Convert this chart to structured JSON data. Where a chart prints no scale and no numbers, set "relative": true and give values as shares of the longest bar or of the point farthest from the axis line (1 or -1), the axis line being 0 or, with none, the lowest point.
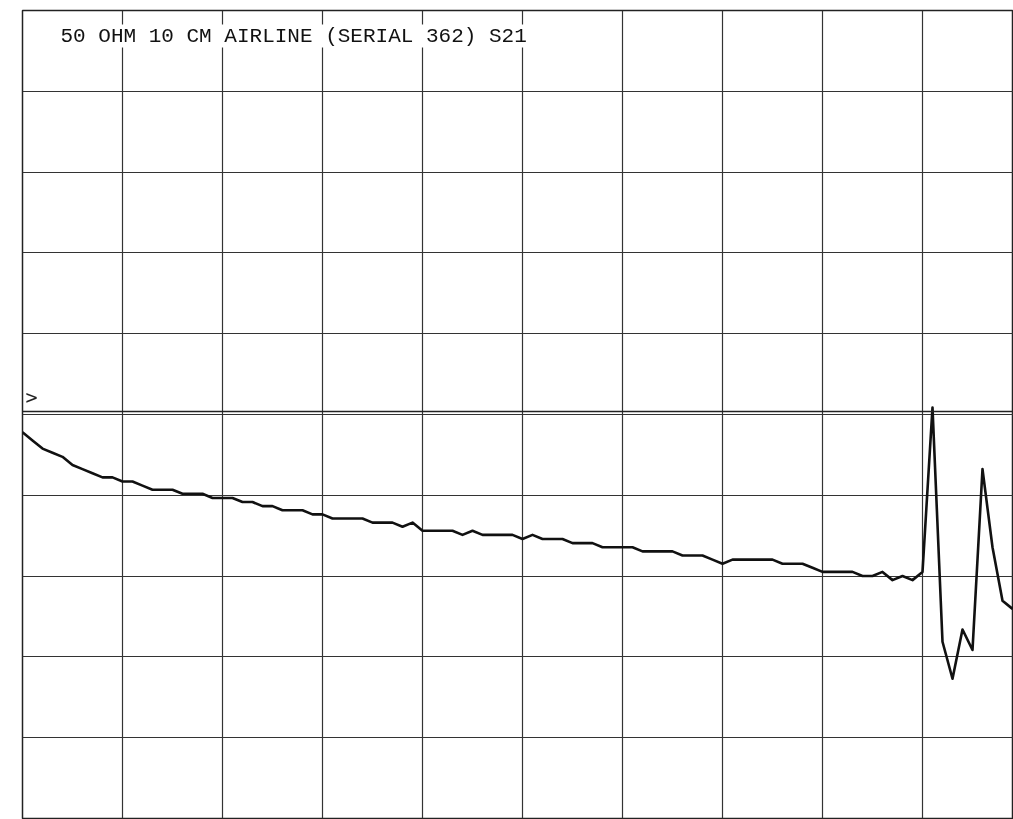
{
  "chart_data": {
    "type": "line",
    "title": "50 OHM 10 CM AIRLINE (SERIAL 362) S21",
    "relative": true,
    "grid": true,
    "categories": [
      null,
      null,
      null,
      null,
      null,
      null,
      null,
      null,
      null,
      null,
      null,
      null,
      null,
      null,
      null,
      null,
      null,
      null,
      null,
      null,
      null,
      null,
      null,
      null,
      null,
      null,
      null,
      null,
      null,
      null,
      null,
      null,
      null,
      null,
      null,
      null,
      null,
      null,
      null,
      null,
      null,
      null,
      null,
      null,
      null,
      null,
      null,
      null,
      null,
      null,
      null,
      null,
      null,
      null,
      null,
      null,
      null,
      null,
      null,
      null,
      null,
      null,
      null,
      null,
      null,
      null,
      null,
      null,
      null,
      null,
      null,
      null,
      null,
      null,
      null,
      null,
      null,
      null,
      null,
      null,
      null,
      null,
      null,
      null,
      null,
      null,
      null,
      null,
      null,
      null,
      null,
      null,
      null,
      null,
      null,
      null,
      null,
      null,
      null,
      null
    ],
    "series": [
      {
        "color": "#111111",
        "values": [
          0.94,
          0.92,
          0.9,
          0.89,
          0.88,
          0.86,
          0.85,
          0.84,
          0.83,
          0.83,
          0.82,
          0.82,
          0.81,
          0.8,
          0.8,
          0.8,
          0.79,
          0.79,
          0.79,
          0.78,
          0.78,
          0.78,
          0.77,
          0.77,
          0.76,
          0.76,
          0.75,
          0.75,
          0.75,
          0.74,
          0.74,
          0.73,
          0.73,
          0.73,
          0.73,
          0.72,
          0.72,
          0.72,
          0.71,
          0.72,
          0.7,
          0.7,
          0.7,
          0.7,
          0.69,
          0.7,
          0.69,
          0.69,
          0.69,
          0.69,
          0.68,
          0.69,
          0.68,
          0.68,
          0.68,
          0.67,
          0.67,
          0.67,
          0.66,
          0.66,
          0.66,
          0.66,
          0.65,
          0.65,
          0.65,
          0.65,
          0.64,
          0.64,
          0.64,
          0.63,
          0.62,
          0.63,
          0.63,
          0.63,
          0.63,
          0.63,
          0.62,
          0.62,
          0.62,
          0.61,
          0.6,
          0.6,
          0.6,
          0.6,
          0.59,
          0.59,
          0.6,
          0.58,
          0.59,
          0.58,
          0.6,
          1.0,
          0.43,
          0.34,
          0.46,
          0.41,
          0.85,
          0.66,
          0.53,
          0.51
        ]
      }
    ],
    "ref_lines": [
      {
        "axis": "y",
        "value": 0.99,
        "label": ">"
      }
    ]
  }
}
